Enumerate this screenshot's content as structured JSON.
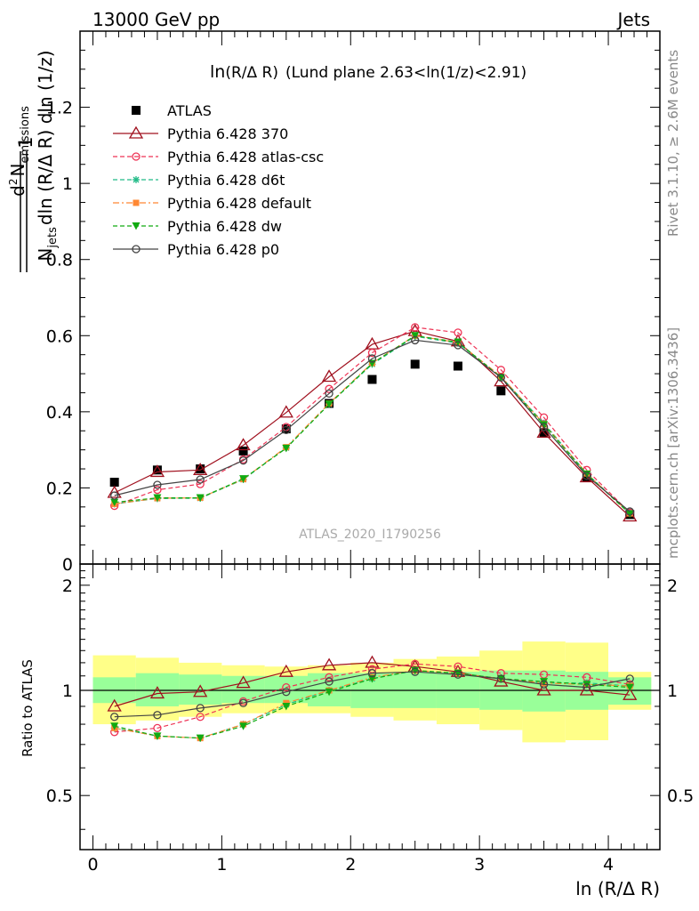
{
  "header": {
    "left": "13000 GeV pp",
    "right": "Jets",
    "subtitle_main": "ln",
    "subtitle_sub": "(R/Δ R)",
    "subtitle_rest": "(Lund plane 2.63<ln(1/z)<2.91)",
    "watermark": "ATLAS_2020_I1790256",
    "side_top": "Rivet 3.1.10, ≥ 2.6M events",
    "side_bottom": "mcplots.cern.ch [arXiv:1306.3436]"
  },
  "axis": {
    "ylabel_num": "1",
    "ylabel_den": "N",
    "ylabel_den_sub": "jets",
    "ylabel_den_rest": "dln (R/Δ R) dln (1/z)",
    "ylabel_numer_d": "d",
    "ylabel_numer_sup": "2",
    "ylabel_numer_N": "N",
    "ylabel_numer_sub": "emissions",
    "ratio_ylabel": "Ratio to ATLAS",
    "xlabel": "ln (R/Δ R)"
  },
  "colors": {
    "atlas": "#000000",
    "p370": "#a0101e",
    "atlascsc": "#ee3355",
    "d6t": "#22bb88",
    "default": "#ff8833",
    "dw": "#11aa11",
    "p0": "#444444",
    "band_inner": "#99ff99",
    "band_outer": "#ffff88"
  },
  "chart_data": [
    {
      "type": "scatter",
      "panel": "main",
      "xlim": [
        -0.1,
        4.4
      ],
      "ylim": [
        0,
        1.4
      ],
      "x_ticks": [
        0,
        1,
        2,
        3,
        4
      ],
      "y_ticks": [
        0,
        0.2,
        0.4,
        0.6,
        0.8,
        1,
        1.2
      ],
      "y_tick_labels": [
        "0",
        "0.2",
        "0.4",
        "0.6",
        "0.8",
        "1",
        "1.2"
      ],
      "legend_position": "top-left",
      "x": [
        0.167,
        0.5,
        0.833,
        1.167,
        1.5,
        1.833,
        2.167,
        2.5,
        2.833,
        3.167,
        3.5,
        3.833,
        4.167
      ],
      "series": [
        {
          "name": "ATLAS",
          "key": "atlas",
          "marker": "square",
          "values": [
            0.215,
            0.247,
            0.25,
            0.297,
            0.355,
            0.422,
            0.485,
            0.525,
            0.52,
            0.455,
            0.345,
            0.228,
            0.13
          ]
        },
        {
          "name": "Pythia 6.428 370",
          "key": "p370",
          "marker": "triangle-open",
          "dash": "solid",
          "values": [
            0.187,
            0.242,
            0.247,
            0.312,
            0.398,
            0.492,
            0.577,
            0.612,
            0.585,
            0.48,
            0.345,
            0.228,
            0.125
          ]
        },
        {
          "name": "Pythia 6.428 atlas-csc",
          "key": "atlascsc",
          "marker": "circle-open",
          "dash": "dashed",
          "values": [
            0.153,
            0.195,
            0.21,
            0.275,
            0.36,
            0.46,
            0.555,
            0.622,
            0.608,
            0.51,
            0.385,
            0.247,
            0.135
          ]
        },
        {
          "name": "Pythia 6.428 d6t",
          "key": "d6t",
          "marker": "star",
          "dash": "dashed",
          "values": [
            0.158,
            0.172,
            0.173,
            0.222,
            0.305,
            0.42,
            0.525,
            0.598,
            0.58,
            0.492,
            0.37,
            0.238,
            0.133
          ]
        },
        {
          "name": "Pythia 6.428 default",
          "key": "default",
          "marker": "square-filled",
          "dash": "dashdot",
          "values": [
            0.158,
            0.173,
            0.174,
            0.223,
            0.307,
            0.422,
            0.528,
            0.6,
            0.582,
            0.493,
            0.368,
            0.238,
            0.133
          ]
        },
        {
          "name": "Pythia 6.428 dw",
          "key": "dw",
          "marker": "triangle-down-filled",
          "dash": "dashed",
          "values": [
            0.162,
            0.174,
            0.174,
            0.224,
            0.304,
            0.42,
            0.527,
            0.6,
            0.583,
            0.49,
            0.366,
            0.236,
            0.132
          ]
        },
        {
          "name": "Pythia 6.428 p0",
          "key": "p0",
          "marker": "circle-open",
          "dash": "solid",
          "values": [
            0.18,
            0.208,
            0.222,
            0.272,
            0.352,
            0.448,
            0.54,
            0.588,
            0.575,
            0.49,
            0.36,
            0.232,
            0.138
          ]
        }
      ]
    },
    {
      "type": "line",
      "panel": "ratio",
      "xlim": [
        -0.1,
        4.4
      ],
      "ylim": [
        0.35,
        2.3
      ],
      "scale": "log",
      "x_ticks": [
        0,
        1,
        2,
        3,
        4
      ],
      "x_tick_labels": [
        "0",
        "1",
        "2",
        "3",
        "4"
      ],
      "y_ticks": [
        0.5,
        1,
        2
      ],
      "y_tick_labels": [
        "0.5",
        "1",
        "2"
      ],
      "bin_edges": [
        0,
        0.333,
        0.667,
        1.0,
        1.333,
        1.667,
        2.0,
        2.333,
        2.667,
        3.0,
        3.333,
        3.667,
        4.0,
        4.333
      ],
      "band_inner": [
        [
          0.92,
          1.09
        ],
        [
          0.9,
          1.12
        ],
        [
          0.91,
          1.11
        ],
        [
          0.92,
          1.1
        ],
        [
          0.92,
          1.1
        ],
        [
          0.9,
          1.12
        ],
        [
          0.89,
          1.12
        ],
        [
          0.89,
          1.13
        ],
        [
          0.89,
          1.13
        ],
        [
          0.88,
          1.14
        ],
        [
          0.87,
          1.14
        ],
        [
          0.88,
          1.13
        ],
        [
          0.91,
          1.09
        ]
      ],
      "band_outer": [
        [
          0.8,
          1.26
        ],
        [
          0.82,
          1.24
        ],
        [
          0.84,
          1.2
        ],
        [
          0.86,
          1.18
        ],
        [
          0.86,
          1.17
        ],
        [
          0.86,
          1.18
        ],
        [
          0.84,
          1.2
        ],
        [
          0.82,
          1.23
        ],
        [
          0.8,
          1.25
        ],
        [
          0.77,
          1.3
        ],
        [
          0.71,
          1.38
        ],
        [
          0.72,
          1.37
        ],
        [
          0.88,
          1.13
        ]
      ],
      "x": [
        0.167,
        0.5,
        0.833,
        1.167,
        1.5,
        1.833,
        2.167,
        2.5,
        2.833,
        3.167,
        3.5,
        3.833,
        4.167
      ],
      "series": [
        {
          "name": "Pythia 6.428 370",
          "key": "p370",
          "values": [
            0.9,
            0.98,
            0.99,
            1.05,
            1.13,
            1.18,
            1.2,
            1.17,
            1.13,
            1.06,
            1.0,
            1.0,
            0.97
          ]
        },
        {
          "name": "Pythia 6.428 atlas-csc",
          "key": "atlascsc",
          "values": [
            0.76,
            0.78,
            0.84,
            0.93,
            1.02,
            1.09,
            1.15,
            1.19,
            1.17,
            1.12,
            1.11,
            1.09,
            1.04
          ]
        },
        {
          "name": "Pythia 6.428 d6t",
          "key": "d6t",
          "values": [
            0.78,
            0.74,
            0.73,
            0.8,
            0.91,
            1.0,
            1.08,
            1.14,
            1.12,
            1.08,
            1.05,
            1.05,
            1.03
          ]
        },
        {
          "name": "Pythia 6.428 default",
          "key": "default",
          "values": [
            0.78,
            0.74,
            0.73,
            0.8,
            0.92,
            1.0,
            1.09,
            1.14,
            1.12,
            1.08,
            1.05,
            1.04,
            1.03
          ]
        },
        {
          "name": "Pythia 6.428 dw",
          "key": "dw",
          "values": [
            0.79,
            0.74,
            0.73,
            0.79,
            0.9,
            0.99,
            1.08,
            1.14,
            1.12,
            1.08,
            1.06,
            1.04,
            1.02
          ]
        },
        {
          "name": "Pythia 6.428 p0",
          "key": "p0",
          "values": [
            0.84,
            0.85,
            0.89,
            0.92,
            0.99,
            1.06,
            1.12,
            1.13,
            1.11,
            1.08,
            1.04,
            1.02,
            1.08
          ]
        }
      ]
    }
  ]
}
